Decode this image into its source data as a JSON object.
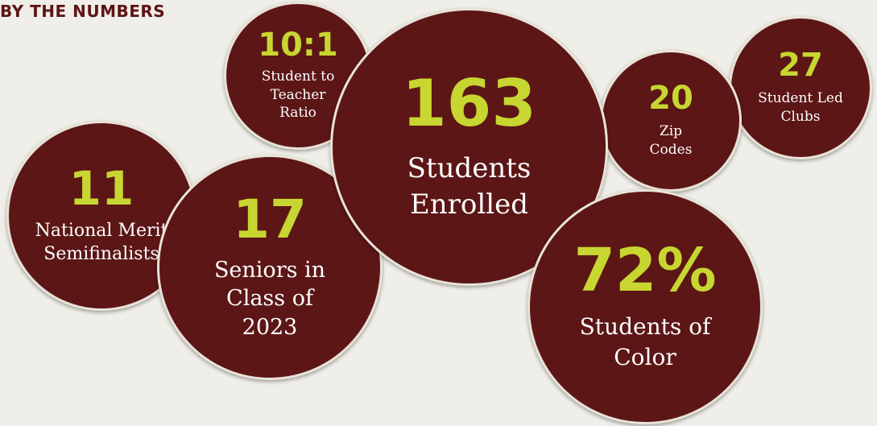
{
  "heading": "BY THE NUMBERS",
  "stats": [
    {
      "id": "merit",
      "value": "11",
      "label": "National Merit\nSemifinalists"
    },
    {
      "id": "seniors",
      "value": "17",
      "label": "Seniors in\nClass of\n2023"
    },
    {
      "id": "ratio",
      "value": "10:1",
      "label": "Student to\nTeacher\nRatio"
    },
    {
      "id": "enrolled",
      "value": "163",
      "label": "Students\nEnrolled"
    },
    {
      "id": "zip",
      "value": "20",
      "label": "Zip\nCodes"
    },
    {
      "id": "color",
      "value": "72%",
      "label": "Students of\nColor"
    },
    {
      "id": "clubs",
      "value": "27",
      "label": "Student Led\nClubs"
    }
  ],
  "colors": {
    "bubble": "#5c1616",
    "number": "#c7d630",
    "heading": "#5e1414",
    "background": "#efeee9"
  }
}
